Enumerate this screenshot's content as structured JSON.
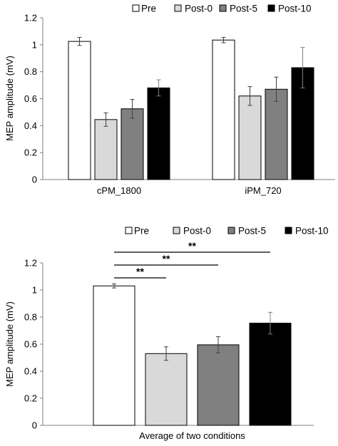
{
  "chart_data": [
    {
      "type": "bar",
      "categories": [
        "cPM_1800",
        "iPM_720"
      ],
      "series": [
        {
          "name": "Pre",
          "color": "#ffffff",
          "values": [
            1.025,
            1.035
          ],
          "error": [
            0.03,
            0.02
          ]
        },
        {
          "name": "Post-0",
          "color": "#d9d9d9",
          "values": [
            0.445,
            0.62
          ],
          "error": [
            0.05,
            0.07
          ]
        },
        {
          "name": "Post-5",
          "color": "#808080",
          "values": [
            0.525,
            0.67
          ],
          "error": [
            0.07,
            0.09
          ]
        },
        {
          "name": "Post-10",
          "color": "#000000",
          "values": [
            0.68,
            0.83
          ],
          "error": [
            0.06,
            0.15
          ]
        }
      ],
      "ylabel": "MEP amplitude (mV)",
      "ylim": [
        0,
        1.2
      ],
      "yticks": [
        "0",
        "0.2",
        "0.4",
        "0.6",
        "0.8",
        "1",
        "1.2"
      ],
      "grid": false,
      "legend": "top"
    },
    {
      "type": "bar",
      "categories": [
        "Average of two conditions"
      ],
      "series": [
        {
          "name": "Pre",
          "color": "#ffffff",
          "values": [
            1.03
          ],
          "error": [
            0.015
          ]
        },
        {
          "name": "Post-0",
          "color": "#d9d9d9",
          "values": [
            0.53
          ],
          "error": [
            0.05
          ]
        },
        {
          "name": "Post-5",
          "color": "#808080",
          "values": [
            0.595
          ],
          "error": [
            0.06
          ]
        },
        {
          "name": "Post-10",
          "color": "#000000",
          "values": [
            0.755
          ],
          "error": [
            0.08
          ]
        }
      ],
      "ylabel": "MEP amplitude (mV)",
      "ylim": [
        0,
        1.2
      ],
      "yticks": [
        "0",
        "0.2",
        "0.4",
        "0.6",
        "0.8",
        "1",
        "1.2"
      ],
      "grid": false,
      "legend": "top",
      "annotations": [
        {
          "from": "Pre",
          "to": "Post-0",
          "text": "**"
        },
        {
          "from": "Pre",
          "to": "Post-5",
          "text": "**"
        },
        {
          "from": "Pre",
          "to": "Post-10",
          "text": "**"
        }
      ]
    }
  ]
}
